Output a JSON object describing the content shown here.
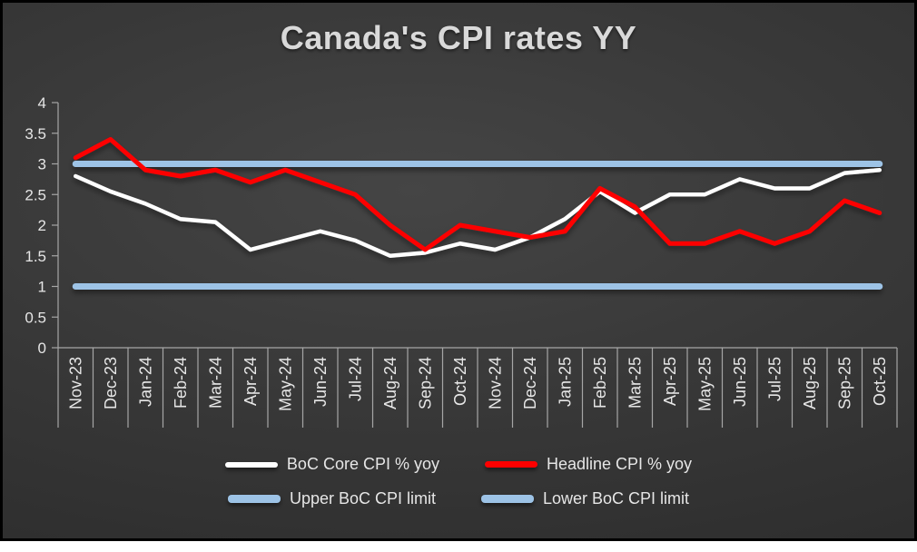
{
  "chart_data": {
    "type": "line",
    "title": "Canada's CPI rates YY",
    "xlabel": "",
    "ylabel": "",
    "ylim": [
      0,
      4
    ],
    "y_ticks": [
      0,
      0.5,
      1,
      1.5,
      2,
      2.5,
      3,
      3.5,
      4
    ],
    "grid": false,
    "legend_position": "bottom",
    "axis_color": "#a6a6a6",
    "text_color": "#e6e6e6",
    "categories": [
      "Nov-23",
      "Dec-23",
      "Jan-24",
      "Feb-24",
      "Mar-24",
      "Apr-24",
      "May-24",
      "Jun-24",
      "Jul-24",
      "Aug-24",
      "Sep-24",
      "Oct-24",
      "Nov-24",
      "Dec-24",
      "Jan-25",
      "Feb-25",
      "Mar-25",
      "Apr-25",
      "May-25",
      "Jun-25",
      "Jul-25",
      "Aug-25",
      "Sep-25",
      "Oct-25"
    ],
    "series": [
      {
        "id": "core-cpi",
        "name": "BoC Core CPI % yoy",
        "color": "#ffffff",
        "width": 4.5,
        "values": [
          2.8,
          2.55,
          2.35,
          2.1,
          2.05,
          1.6,
          1.75,
          1.9,
          1.75,
          1.5,
          1.55,
          1.7,
          1.6,
          1.8,
          2.1,
          2.55,
          2.2,
          2.5,
          2.5,
          2.75,
          2.6,
          2.6,
          2.85,
          2.9
        ]
      },
      {
        "id": "headline-cpi",
        "name": "Headline CPI % yoy",
        "color": "#fe0000",
        "width": 5,
        "values": [
          3.1,
          3.4,
          2.9,
          2.8,
          2.9,
          2.7,
          2.9,
          2.7,
          2.5,
          2.0,
          1.6,
          2.0,
          1.9,
          1.8,
          1.9,
          2.6,
          2.3,
          1.7,
          1.7,
          1.9,
          1.7,
          1.9,
          2.4,
          2.2
        ]
      },
      {
        "id": "upper-limit",
        "name": "Upper BoC CPI limit",
        "color": "#9dc3e6",
        "width": 7,
        "values": [
          3,
          3,
          3,
          3,
          3,
          3,
          3,
          3,
          3,
          3,
          3,
          3,
          3,
          3,
          3,
          3,
          3,
          3,
          3,
          3,
          3,
          3,
          3,
          3
        ]
      },
      {
        "id": "lower-limit",
        "name": "Lower BoC CPI limit",
        "color": "#9dc3e6",
        "width": 7,
        "values": [
          1,
          1,
          1,
          1,
          1,
          1,
          1,
          1,
          1,
          1,
          1,
          1,
          1,
          1,
          1,
          1,
          1,
          1,
          1,
          1,
          1,
          1,
          1,
          1
        ]
      }
    ]
  }
}
